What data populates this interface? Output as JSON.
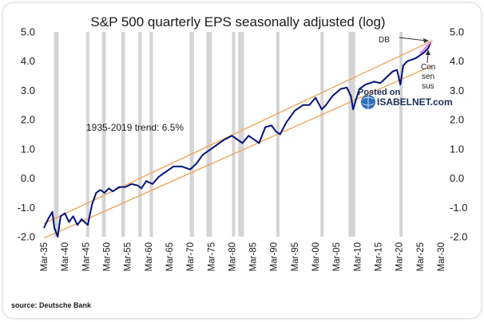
{
  "chart_data": {
    "type": "line",
    "title": "S&P 500 quarterly EPS seasonally adjusted (log)",
    "ylim": [
      -2.0,
      5.0
    ],
    "yticks": [
      "5.0",
      "4.0",
      "3.0",
      "2.0",
      "1.0",
      "0.0",
      "-1.0",
      "-2.0"
    ],
    "xlim": [
      1935,
      2030
    ],
    "xticks": [
      "Mar-35",
      "Mar-40",
      "Mar-45",
      "Mar-50",
      "Mar-55",
      "Mar-60",
      "Mar-65",
      "Mar-70",
      "Mar-75",
      "Mar-80",
      "Mar-85",
      "Mar-90",
      "Mar-95",
      "Mar-00",
      "Mar-05",
      "Mar-10",
      "Mar-15",
      "Mar-20",
      "Mar-25",
      "Mar-30"
    ],
    "recessions": [
      [
        1937.4,
        1938.5
      ],
      [
        1945.1,
        1945.8
      ],
      [
        1948.9,
        1949.8
      ],
      [
        1953.5,
        1954.4
      ],
      [
        1957.6,
        1958.4
      ],
      [
        1960.3,
        1961.1
      ],
      [
        1969.9,
        1970.9
      ],
      [
        1973.9,
        1975.2
      ],
      [
        1980.0,
        1980.6
      ],
      [
        1981.5,
        1982.9
      ],
      [
        1990.6,
        1991.3
      ],
      [
        2001.2,
        2001.9
      ],
      [
        2007.9,
        2009.5
      ],
      [
        2020.1,
        2020.5
      ]
    ],
    "series": [
      {
        "color": "#00147a",
        "x": [
          1935.0,
          1936.0,
          1937.0,
          1937.5,
          1938.3,
          1939.0,
          1940.0,
          1941.0,
          1942.0,
          1943.0,
          1944.0,
          1945.5,
          1946.5,
          1947.5,
          1948.5,
          1949.5,
          1950.5,
          1951.5,
          1953.0,
          1954.5,
          1956.0,
          1957.5,
          1958.3,
          1959.5,
          1961.0,
          1962.5,
          1964.0,
          1966.0,
          1968.0,
          1970.0,
          1971.5,
          1973.0,
          1975.0,
          1976.5,
          1978.0,
          1980.0,
          1981.0,
          1982.5,
          1984.0,
          1985.5,
          1986.5,
          1988.0,
          1989.5,
          1990.5,
          1991.5,
          1993.0,
          1995.0,
          1997.0,
          1998.5,
          2000.0,
          2001.5,
          2002.5,
          2004.0,
          2006.0,
          2007.5,
          2008.5,
          2009.0,
          2009.5,
          2010.5,
          2012.0,
          2014.0,
          2015.5,
          2017.0,
          2018.5,
          2019.5,
          2020.3,
          2021.0,
          2022.0,
          2023.0,
          2024.0,
          2025.0,
          2026.0,
          2027.0,
          2027.6
        ],
        "y": [
          -1.7,
          -1.4,
          -1.15,
          -1.7,
          -2.0,
          -1.3,
          -1.2,
          -1.5,
          -1.3,
          -1.6,
          -1.4,
          -1.6,
          -0.9,
          -0.5,
          -0.4,
          -0.5,
          -0.35,
          -0.45,
          -0.3,
          -0.3,
          -0.2,
          -0.25,
          -0.35,
          -0.1,
          -0.2,
          0.05,
          0.2,
          0.4,
          0.4,
          0.3,
          0.5,
          0.8,
          1.0,
          1.15,
          1.3,
          1.45,
          1.35,
          1.2,
          1.45,
          1.3,
          1.2,
          1.75,
          1.8,
          1.6,
          1.5,
          1.9,
          2.3,
          2.5,
          2.5,
          2.75,
          2.35,
          2.5,
          2.8,
          3.05,
          3.1,
          2.8,
          2.35,
          2.6,
          3.05,
          3.2,
          3.3,
          3.25,
          3.45,
          3.65,
          3.7,
          3.2,
          3.85,
          4.0,
          4.05,
          4.1,
          4.2,
          4.3,
          4.45,
          4.65
        ]
      }
    ],
    "trend_lines": [
      {
        "color": "#f0a050",
        "x": [
          1935,
          2028
        ],
        "y": [
          -1.55,
          4.7
        ]
      },
      {
        "color": "#f0a050",
        "x": [
          1935,
          2028
        ],
        "y": [
          -2.05,
          3.85
        ]
      }
    ],
    "consensus_line": {
      "color": "#e879e8",
      "x": [
        2025.0,
        2027.6
      ],
      "y": [
        4.25,
        4.65
      ]
    }
  },
  "annotations": {
    "trend": "1935-2019 trend: 6.5%",
    "db": "DB",
    "consensus_1": "Con",
    "consensus_2": "sen",
    "consensus_3": "sus"
  },
  "watermark": {
    "line1": "Posted on",
    "line2": "ISABELNET.com"
  },
  "source": "source: Deutsche Bank"
}
